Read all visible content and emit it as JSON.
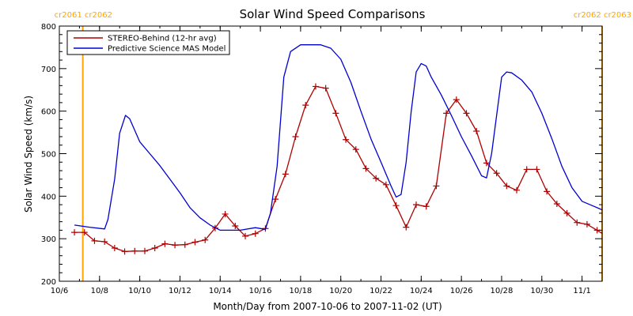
{
  "chart_data": {
    "type": "line",
    "title": "Solar Wind Speed Comparisons",
    "xlabel": "Month/Day from 2007-10-06 to 2007-11-02 (UT)",
    "ylabel": "Solar Wind Speed (km/s)",
    "xlim": [
      "2007-10-06T00:00",
      "2007-11-02T00:00"
    ],
    "ylim": [
      200,
      800
    ],
    "x_ticks": [
      {
        "x": "2007-10-06",
        "label": "10/6"
      },
      {
        "x": "2007-10-08",
        "label": "10/8"
      },
      {
        "x": "2007-10-10",
        "label": "10/10"
      },
      {
        "x": "2007-10-12",
        "label": "10/12"
      },
      {
        "x": "2007-10-14",
        "label": "10/14"
      },
      {
        "x": "2007-10-16",
        "label": "10/16"
      },
      {
        "x": "2007-10-18",
        "label": "10/18"
      },
      {
        "x": "2007-10-20",
        "label": "10/20"
      },
      {
        "x": "2007-10-22",
        "label": "10/22"
      },
      {
        "x": "2007-10-24",
        "label": "10/24"
      },
      {
        "x": "2007-10-26",
        "label": "10/26"
      },
      {
        "x": "2007-10-28",
        "label": "10/28"
      },
      {
        "x": "2007-10-30",
        "label": "10/30"
      },
      {
        "x": "2007-11-01",
        "label": "11/1"
      }
    ],
    "y_ticks": [
      200,
      300,
      400,
      500,
      600,
      700,
      800
    ],
    "legend_position": "top-left",
    "carrington_markers": [
      {
        "x": "2007-10-07T04:00",
        "labels": [
          "cr2061",
          "cr2062"
        ],
        "color": "#FFA500",
        "side": "left"
      },
      {
        "x": "2007-11-02T00:00",
        "labels": [
          "cr2062",
          "cr2063"
        ],
        "color": "#FFA500",
        "side": "right"
      }
    ],
    "series": [
      {
        "name": "STEREO-Behind (12-hr avg)",
        "color": "#B00000",
        "marker": "+",
        "points": [
          [
            "2007-10-06T18:00",
            315
          ],
          [
            "2007-10-07T06:00",
            315
          ],
          [
            "2007-10-07T18:00",
            295
          ],
          [
            "2007-10-08T06:00",
            293
          ],
          [
            "2007-10-08T18:00",
            278
          ],
          [
            "2007-10-09T06:00",
            270
          ],
          [
            "2007-10-09T18:00",
            271
          ],
          [
            "2007-10-10T06:00",
            271
          ],
          [
            "2007-10-10T18:00",
            278
          ],
          [
            "2007-10-11T06:00",
            288
          ],
          [
            "2007-10-11T18:00",
            285
          ],
          [
            "2007-10-12T06:00",
            286
          ],
          [
            "2007-10-12T18:00",
            292
          ],
          [
            "2007-10-13T06:00",
            297
          ],
          [
            "2007-10-13T18:00",
            325
          ],
          [
            "2007-10-14T06:00",
            358
          ],
          [
            "2007-10-14T18:00",
            330
          ],
          [
            "2007-10-15T06:00",
            306
          ],
          [
            "2007-10-15T18:00",
            312
          ],
          [
            "2007-10-16T06:00",
            324
          ],
          [
            "2007-10-16T18:00",
            393
          ],
          [
            "2007-10-17T06:00",
            452
          ],
          [
            "2007-10-17T18:00",
            540
          ],
          [
            "2007-10-18T06:00",
            614
          ],
          [
            "2007-10-18T18:00",
            658
          ],
          [
            "2007-10-19T06:00",
            654
          ],
          [
            "2007-10-19T18:00",
            595
          ],
          [
            "2007-10-20T06:00",
            533
          ],
          [
            "2007-10-20T18:00",
            510
          ],
          [
            "2007-10-21T06:00",
            465
          ],
          [
            "2007-10-21T18:00",
            442
          ],
          [
            "2007-10-22T06:00",
            427
          ],
          [
            "2007-10-22T18:00",
            378
          ],
          [
            "2007-10-23T06:00",
            327
          ],
          [
            "2007-10-23T18:00",
            380
          ],
          [
            "2007-10-24T06:00",
            376
          ],
          [
            "2007-10-24T18:00",
            424
          ],
          [
            "2007-10-25T06:00",
            595
          ],
          [
            "2007-10-25T18:00",
            627
          ],
          [
            "2007-10-26T06:00",
            595
          ],
          [
            "2007-10-26T18:00",
            553
          ],
          [
            "2007-10-27T06:00",
            478
          ],
          [
            "2007-10-27T18:00",
            454
          ],
          [
            "2007-10-28T06:00",
            424
          ],
          [
            "2007-10-28T18:00",
            414
          ],
          [
            "2007-10-29T06:00",
            463
          ],
          [
            "2007-10-29T18:00",
            463
          ],
          [
            "2007-10-30T06:00",
            411
          ],
          [
            "2007-10-30T18:00",
            382
          ],
          [
            "2007-10-31T06:00",
            360
          ],
          [
            "2007-10-31T18:00",
            338
          ],
          [
            "2007-11-01T06:00",
            334
          ],
          [
            "2007-11-01T18:00",
            320
          ],
          [
            "2007-11-02T06:00",
            305
          ],
          [
            "2007-11-02T18:00",
            296
          ]
        ]
      },
      {
        "name": "Predictive Science MAS Model",
        "color": "#0000D0",
        "marker": "none",
        "points": [
          [
            "2007-10-06T18:00",
            332
          ],
          [
            "2007-10-07T12:00",
            327
          ],
          [
            "2007-10-08T06:00",
            323
          ],
          [
            "2007-10-08T10:00",
            345
          ],
          [
            "2007-10-08T18:00",
            440
          ],
          [
            "2007-10-09T00:00",
            548
          ],
          [
            "2007-10-09T07:00",
            590
          ],
          [
            "2007-10-09T12:00",
            582
          ],
          [
            "2007-10-10T00:00",
            528
          ],
          [
            "2007-10-10T12:00",
            500
          ],
          [
            "2007-10-11T00:00",
            472
          ],
          [
            "2007-10-11T12:00",
            440
          ],
          [
            "2007-10-12T00:00",
            408
          ],
          [
            "2007-10-12T12:00",
            373
          ],
          [
            "2007-10-13T00:00",
            349
          ],
          [
            "2007-10-13T12:00",
            332
          ],
          [
            "2007-10-14T00:00",
            320
          ],
          [
            "2007-10-15T00:00",
            320
          ],
          [
            "2007-10-15T18:00",
            326
          ],
          [
            "2007-10-16T06:00",
            322
          ],
          [
            "2007-10-16T12:00",
            360
          ],
          [
            "2007-10-16T20:00",
            470
          ],
          [
            "2007-10-17T04:00",
            680
          ],
          [
            "2007-10-17T12:00",
            740
          ],
          [
            "2007-10-18T00:00",
            756
          ],
          [
            "2007-10-19T00:00",
            756
          ],
          [
            "2007-10-19T12:00",
            748
          ],
          [
            "2007-10-20T00:00",
            722
          ],
          [
            "2007-10-20T12:00",
            668
          ],
          [
            "2007-10-21T00:00",
            600
          ],
          [
            "2007-10-21T12:00",
            535
          ],
          [
            "2007-10-22T00:00",
            480
          ],
          [
            "2007-10-22T12:00",
            424
          ],
          [
            "2007-10-22T18:00",
            398
          ],
          [
            "2007-10-23T00:00",
            404
          ],
          [
            "2007-10-23T06:00",
            480
          ],
          [
            "2007-10-23T12:00",
            598
          ],
          [
            "2007-10-23T18:00",
            692
          ],
          [
            "2007-10-24T00:00",
            712
          ],
          [
            "2007-10-24T06:00",
            706
          ],
          [
            "2007-10-24T12:00",
            680
          ],
          [
            "2007-10-25T00:00",
            638
          ],
          [
            "2007-10-25T12:00",
            590
          ],
          [
            "2007-10-26T00:00",
            540
          ],
          [
            "2007-10-26T12:00",
            495
          ],
          [
            "2007-10-27T00:00",
            448
          ],
          [
            "2007-10-27T06:00",
            443
          ],
          [
            "2007-10-27T12:00",
            500
          ],
          [
            "2007-10-28T00:00",
            680
          ],
          [
            "2007-10-28T06:00",
            692
          ],
          [
            "2007-10-28T12:00",
            690
          ],
          [
            "2007-10-29T00:00",
            673
          ],
          [
            "2007-10-29T12:00",
            645
          ],
          [
            "2007-10-30T00:00",
            595
          ],
          [
            "2007-10-30T12:00",
            535
          ],
          [
            "2007-10-31T00:00",
            470
          ],
          [
            "2007-10-31T12:00",
            420
          ],
          [
            "2007-11-01T00:00",
            388
          ],
          [
            "2007-11-01T12:00",
            378
          ],
          [
            "2007-11-02T00:00",
            368
          ],
          [
            "2007-11-02T12:00",
            363
          ],
          [
            "2007-11-03T00:00",
            352
          ]
        ]
      }
    ]
  }
}
